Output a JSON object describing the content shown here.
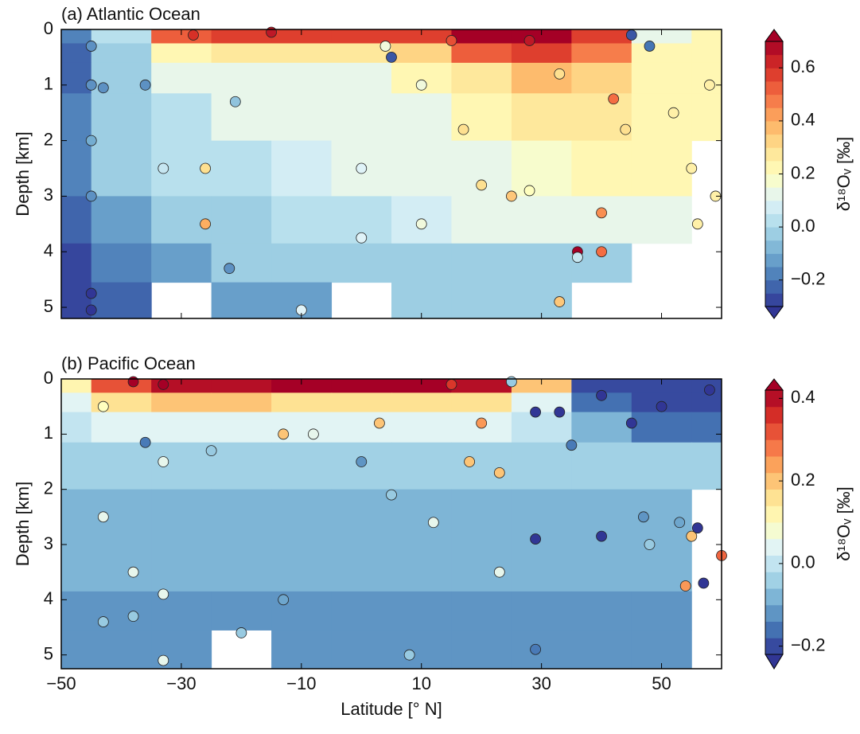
{
  "chart_data": [
    {
      "type": "scatter",
      "title": "(a) Atlantic Ocean",
      "ylabel": "Depth [km]",
      "xlim": [
        -50,
        60
      ],
      "xticks": [
        -50,
        -30,
        -10,
        10,
        30,
        50
      ],
      "ylim": [
        0,
        5.2
      ],
      "y_inverted": true,
      "yticks": [
        0,
        1,
        2,
        3,
        4,
        5
      ],
      "colormap": [
        "#313695",
        "#4575b4",
        "#74add1",
        "#abd9e9",
        "#e0f3f8",
        "#ffffbf",
        "#fee090",
        "#fdae61",
        "#f46d43",
        "#d73027",
        "#a50026"
      ],
      "clim": [
        -0.3,
        0.7
      ],
      "levels_step": 0.05,
      "cticks": [
        {
          "value": -0.2,
          "label": "−0.2"
        },
        {
          "value": 0,
          "label": "0.0"
        },
        0.2,
        0.4,
        0.6
      ],
      "colorbar_label": "δ¹⁸Oᵥ [‰]",
      "field": {
        "lat": [
          -50,
          -40,
          -30,
          -20,
          -10,
          0,
          10,
          20,
          30,
          40,
          50,
          60
        ],
        "depth": [
          0.1,
          0.4,
          0.8,
          1.5,
          2.5,
          3.5,
          4.2,
          4.9
        ],
        "values": [
          [
            -0.15,
            0.05,
            0.5,
            0.6,
            0.55,
            0.55,
            0.6,
            0.7,
            0.7,
            0.6,
            0.1,
            0.2
          ],
          [
            -0.2,
            0.0,
            0.2,
            0.3,
            0.3,
            0.3,
            0.35,
            0.5,
            0.55,
            0.45,
            0.2,
            0.2
          ],
          [
            -0.2,
            -0.05,
            0.1,
            0.15,
            0.15,
            0.15,
            0.2,
            0.3,
            0.4,
            0.35,
            0.2,
            0.2
          ],
          [
            -0.15,
            -0.05,
            0.05,
            0.1,
            0.12,
            0.12,
            0.15,
            0.2,
            0.25,
            0.25,
            0.2,
            0.2
          ],
          [
            -0.15,
            -0.05,
            0.03,
            0.05,
            0.08,
            0.1,
            0.12,
            0.15,
            0.18,
            0.2,
            0.2,
            null
          ],
          [
            -0.2,
            -0.1,
            -0.05,
            0.0,
            0.02,
            0.05,
            0.08,
            0.1,
            0.12,
            0.15,
            0.15,
            null
          ],
          [
            -0.25,
            -0.15,
            -0.1,
            -0.05,
            -0.05,
            -0.03,
            0.0,
            -0.02,
            -0.02,
            -0.05,
            null,
            null
          ],
          [
            -0.25,
            -0.2,
            null,
            -0.1,
            -0.1,
            null,
            -0.05,
            -0.05,
            -0.05,
            null,
            null,
            null
          ]
        ]
      },
      "x": [
        -45,
        -45,
        -45,
        -45,
        -45,
        -45,
        -43,
        -36,
        -33,
        -28,
        -26,
        -26,
        -22,
        -21,
        -15,
        -10,
        0,
        0,
        4,
        5,
        10,
        10,
        15,
        17,
        20,
        25,
        28,
        28,
        33,
        36,
        36,
        40,
        40,
        42,
        45,
        48,
        52,
        55,
        56,
        58,
        59,
        33,
        44
      ],
      "y": [
        0.3,
        1.0,
        2.0,
        3.0,
        4.75,
        5.05,
        1.05,
        1.0,
        2.5,
        0.1,
        2.5,
        3.5,
        4.3,
        1.3,
        0.05,
        5.05,
        2.5,
        3.75,
        0.3,
        0.5,
        1.0,
        3.5,
        0.2,
        1.8,
        2.8,
        3.0,
        0.2,
        2.9,
        0.8,
        4.0,
        4.1,
        3.3,
        4.0,
        1.25,
        0.1,
        0.3,
        1.5,
        2.5,
        3.5,
        1.0,
        3.0,
        4.9,
        1.8
      ],
      "values": [
        -0.15,
        -0.15,
        -0.1,
        -0.15,
        -0.3,
        -0.3,
        -0.15,
        -0.15,
        0.05,
        0.6,
        0.3,
        0.4,
        -0.15,
        -0.05,
        0.65,
        0.1,
        0.1,
        0.1,
        0.15,
        -0.25,
        0.15,
        0.15,
        0.55,
        0.3,
        0.3,
        0.35,
        0.65,
        0.2,
        0.3,
        0.7,
        0.05,
        0.45,
        0.5,
        0.5,
        -0.25,
        -0.2,
        0.25,
        0.25,
        0.25,
        0.25,
        0.25,
        0.35,
        0.3
      ]
    },
    {
      "type": "scatter",
      "title": "(b) Pacific Ocean",
      "ylabel": "Depth [km]",
      "xlabel": "Latitude [° N]",
      "xlim": [
        -50,
        60
      ],
      "xticks": [
        {
          "value": -50,
          "label": "−50"
        },
        {
          "value": -30,
          "label": "−30"
        },
        {
          "value": -10,
          "label": "−10"
        },
        10,
        30,
        50
      ],
      "ylim": [
        0,
        5.25
      ],
      "y_inverted": true,
      "yticks": [
        0,
        1,
        2,
        3,
        4,
        5
      ],
      "colormap": [
        "#313695",
        "#4575b4",
        "#74add1",
        "#abd9e9",
        "#e0f3f8",
        "#ffffbf",
        "#fee090",
        "#fdae61",
        "#f46d43",
        "#d73027",
        "#a50026"
      ],
      "clim": [
        -0.22,
        0.42
      ],
      "levels_step": 0.04,
      "cticks": [
        {
          "value": -0.2,
          "label": "−0.2"
        },
        {
          "value": 0,
          "label": "0.0"
        },
        0.2,
        0.4
      ],
      "colorbar_label": "δ¹⁸Oᵥ [‰]",
      "field": {
        "lat": [
          -50,
          -40,
          -30,
          -20,
          -10,
          0,
          10,
          20,
          30,
          40,
          50,
          60
        ],
        "depth": [
          0.1,
          0.4,
          0.8,
          1.5,
          2.5,
          3.5,
          4.2,
          4.9
        ],
        "values": [
          [
            0.1,
            0.3,
            0.4,
            0.4,
            0.42,
            0.42,
            0.42,
            0.4,
            0.2,
            -0.2,
            -0.2,
            -0.2
          ],
          [
            0.05,
            0.15,
            0.2,
            0.2,
            0.15,
            0.15,
            0.15,
            0.15,
            0.05,
            -0.15,
            -0.2,
            -0.2
          ],
          [
            0.0,
            0.05,
            0.05,
            0.05,
            0.05,
            0.05,
            0.05,
            0.05,
            0.0,
            -0.1,
            -0.15,
            -0.15
          ],
          [
            -0.05,
            -0.03,
            -0.03,
            -0.03,
            -0.03,
            -0.03,
            -0.03,
            -0.03,
            -0.03,
            -0.05,
            -0.05,
            -0.05
          ],
          [
            -0.08,
            -0.08,
            -0.08,
            -0.08,
            -0.08,
            -0.08,
            -0.08,
            -0.08,
            -0.08,
            -0.08,
            -0.08,
            null
          ],
          [
            -0.08,
            -0.08,
            -0.08,
            -0.08,
            -0.08,
            -0.08,
            -0.08,
            -0.08,
            -0.08,
            -0.08,
            -0.08,
            null
          ],
          [
            -0.12,
            -0.12,
            -0.12,
            -0.12,
            -0.12,
            -0.12,
            -0.12,
            -0.12,
            -0.12,
            -0.12,
            -0.12,
            null
          ],
          [
            -0.12,
            -0.12,
            -0.12,
            null,
            -0.12,
            -0.12,
            -0.12,
            -0.12,
            -0.12,
            -0.12,
            -0.12,
            null
          ]
        ]
      },
      "x": [
        -43,
        -43,
        -43,
        -38,
        -38,
        -38,
        -36,
        -33,
        -33,
        -33,
        -33,
        -25,
        -20,
        -13,
        -13,
        -8,
        0,
        3,
        5,
        8,
        12,
        15,
        18,
        20,
        23,
        23,
        25,
        29,
        29,
        29,
        33,
        35,
        40,
        40,
        45,
        47,
        48,
        50,
        53,
        55,
        56,
        57,
        58,
        60,
        54
      ],
      "y": [
        0.5,
        2.5,
        4.4,
        0.05,
        3.5,
        4.3,
        1.15,
        0.1,
        1.5,
        3.9,
        5.1,
        1.3,
        4.6,
        1.0,
        4.0,
        1.0,
        1.5,
        0.8,
        2.1,
        5.0,
        2.6,
        0.1,
        1.5,
        0.8,
        1.7,
        3.5,
        0.05,
        0.6,
        2.9,
        4.9,
        0.6,
        1.2,
        0.3,
        2.85,
        0.8,
        2.5,
        3.0,
        0.5,
        2.6,
        2.85,
        2.7,
        3.7,
        0.2,
        3.2,
        3.75
      ],
      "values": [
        0.1,
        0.05,
        -0.05,
        0.42,
        0.05,
        -0.05,
        -0.15,
        0.42,
        0.05,
        0.05,
        0.05,
        -0.05,
        -0.05,
        0.2,
        -0.1,
        0.05,
        -0.12,
        0.2,
        -0.05,
        -0.05,
        0.05,
        0.35,
        0.2,
        0.25,
        0.2,
        0.05,
        -0.05,
        -0.22,
        -0.22,
        -0.15,
        -0.22,
        -0.15,
        -0.22,
        -0.22,
        -0.22,
        -0.12,
        -0.05,
        -0.22,
        -0.1,
        0.2,
        -0.22,
        -0.22,
        -0.22,
        0.3,
        0.25
      ]
    }
  ]
}
